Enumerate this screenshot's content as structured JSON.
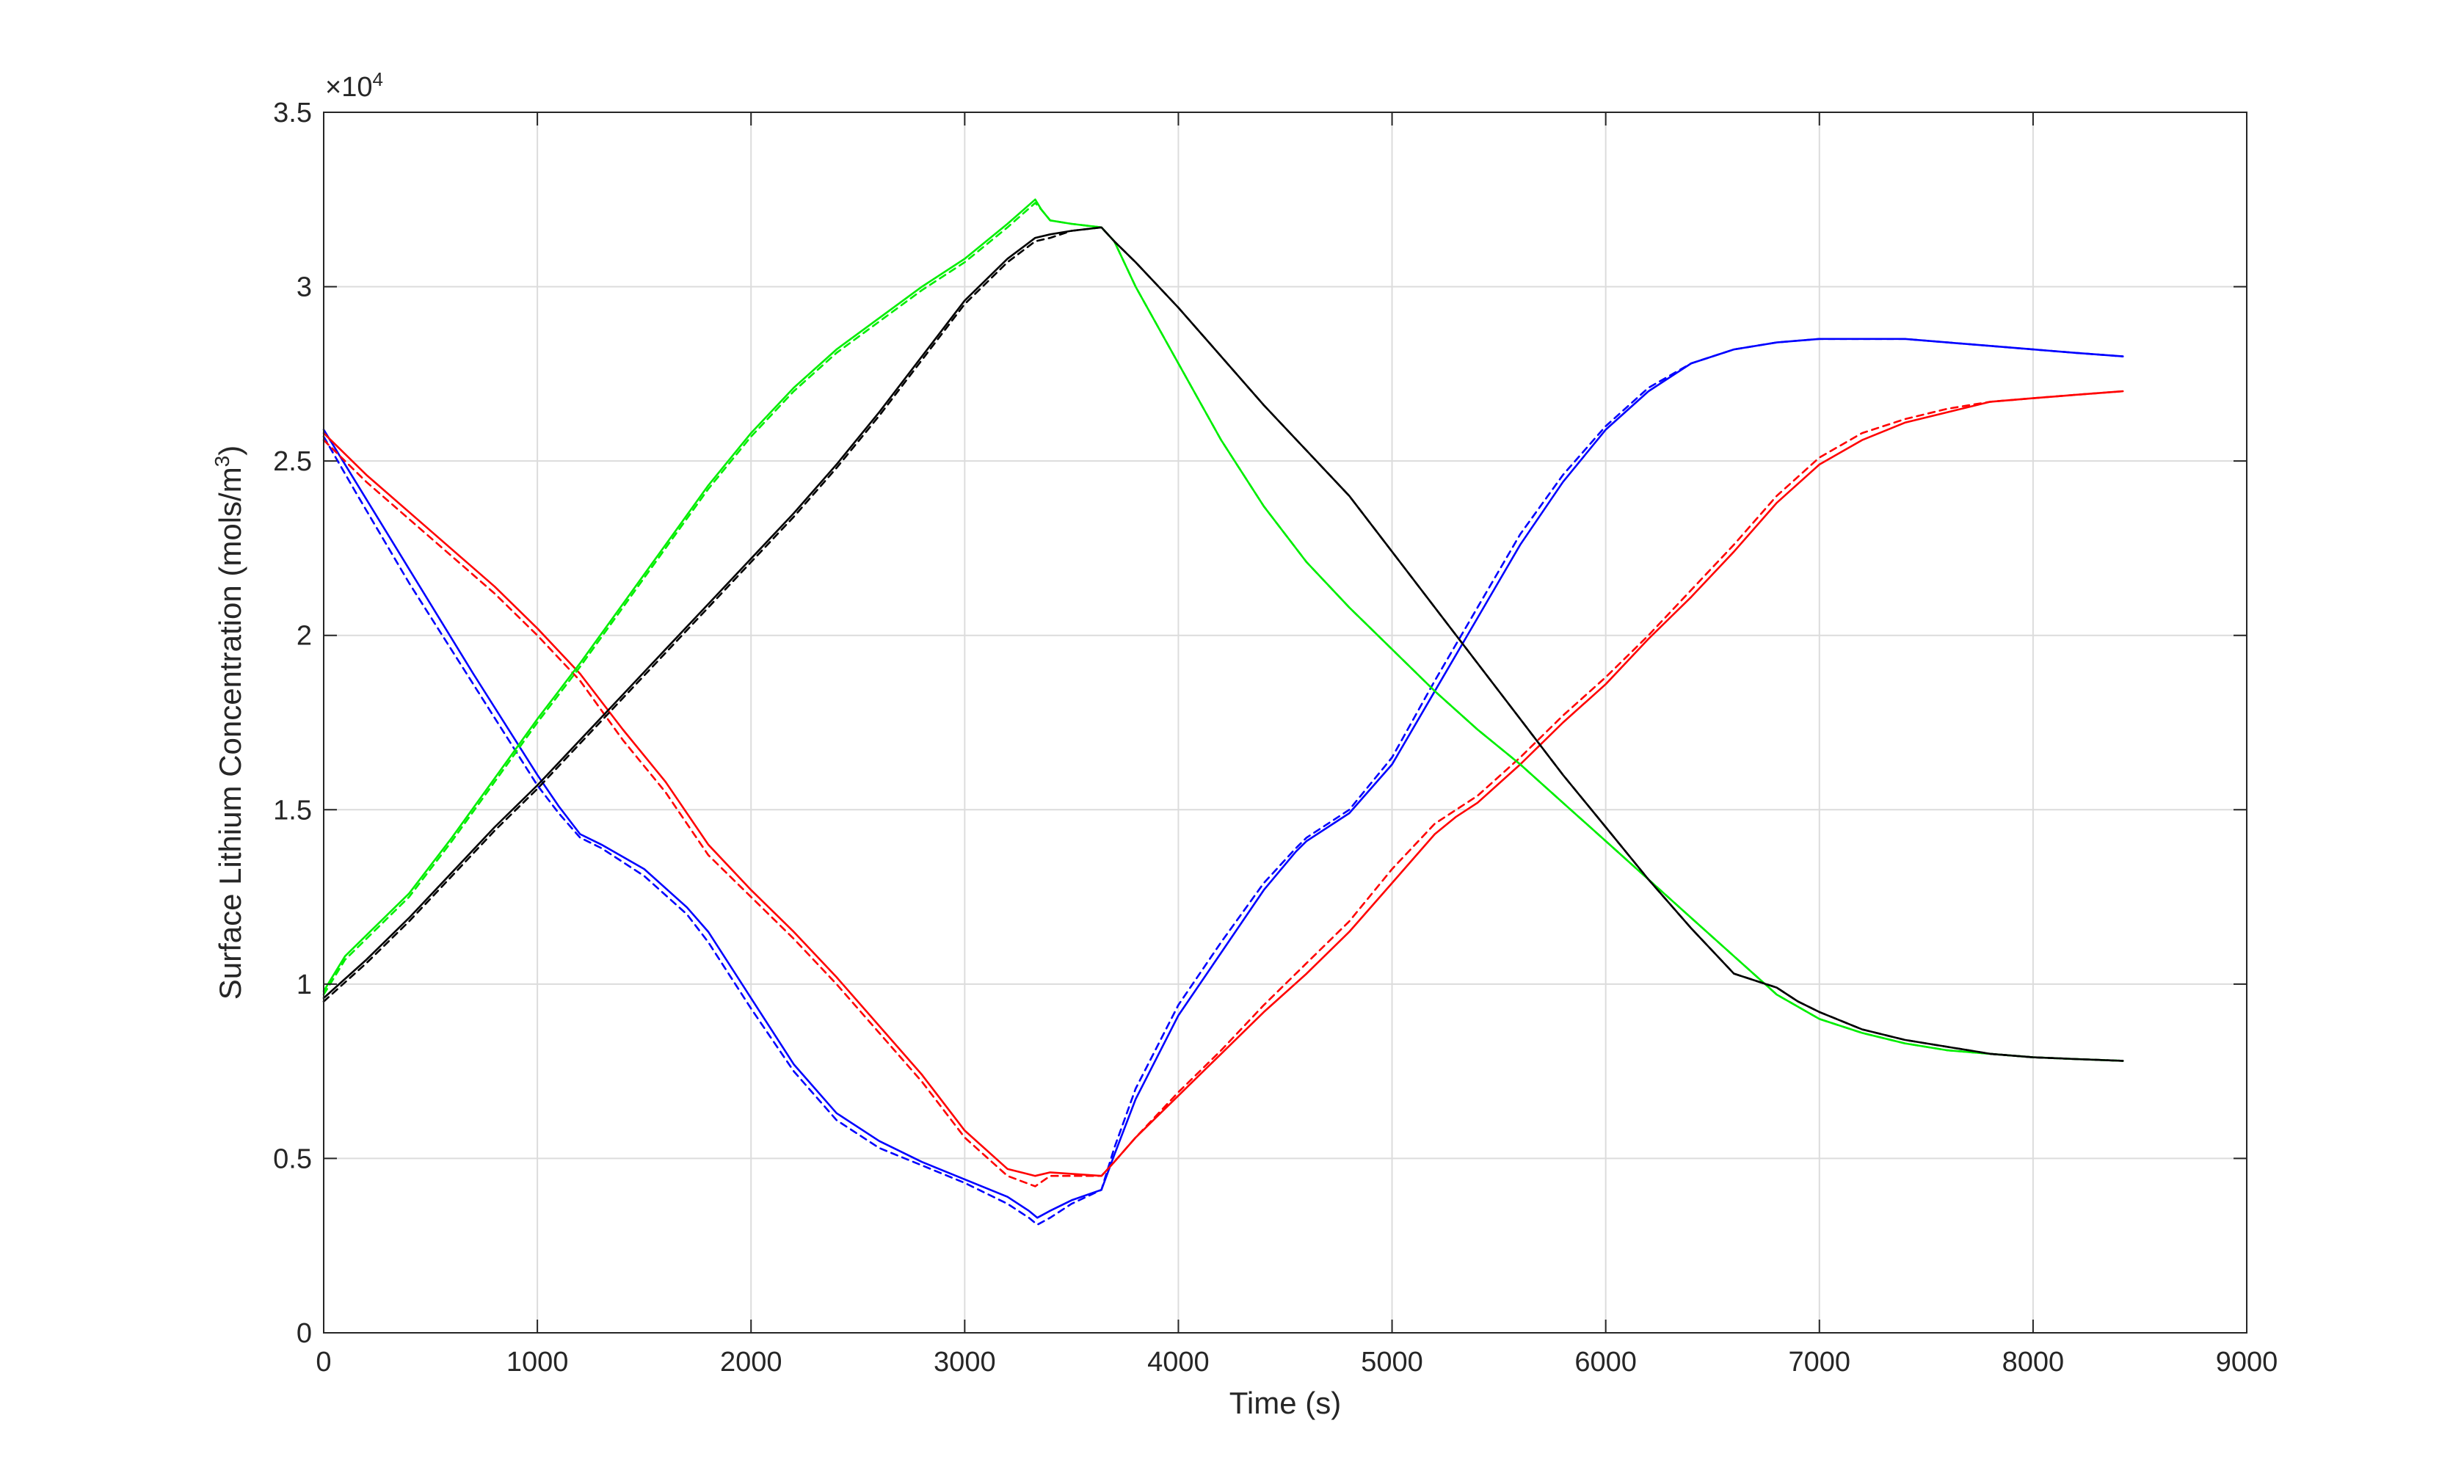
{
  "chart_data": {
    "type": "line",
    "title": "",
    "xlabel": "Time (s)",
    "ylabel": "Surface  Lithium  Concentration  (mols/m",
    "ylabel_superscript": "3",
    "ylabel_suffix": ")",
    "y_exponent_label": "×10",
    "y_exponent_power": "4",
    "xlim": [
      0,
      9000
    ],
    "ylim": [
      0,
      35000
    ],
    "x_ticks": [
      0,
      1000,
      2000,
      3000,
      4000,
      5000,
      6000,
      7000,
      8000,
      9000
    ],
    "x_tick_labels": [
      "0",
      "1000",
      "2000",
      "3000",
      "4000",
      "5000",
      "6000",
      "7000",
      "8000",
      "9000"
    ],
    "y_ticks": [
      0,
      5000,
      10000,
      15000,
      20000,
      25000,
      30000,
      35000
    ],
    "y_tick_labels": [
      "0",
      "0.5",
      "1",
      "1.5",
      "2",
      "2.5",
      "3",
      "3.5"
    ],
    "grid": true,
    "legend": "none",
    "series": [
      {
        "color": "#0000ff",
        "style": "solid",
        "x": [
          0,
          150,
          400,
          700,
          1000,
          1100,
          1200,
          1300,
          1500,
          1700,
          1800,
          2000,
          2200,
          2400,
          2600,
          2800,
          3000,
          3200,
          3300,
          3340,
          3400,
          3500,
          3640,
          3700,
          3800,
          4000,
          4200,
          4400,
          4550,
          4600,
          4800,
          5000,
          5200,
          5400,
          5600,
          5800,
          6000,
          6200,
          6400,
          6600,
          6800,
          7000,
          7200,
          7400,
          7600,
          7800,
          8000,
          8200,
          8420
        ],
        "y": [
          25900,
          24400,
          21900,
          18900,
          16000,
          15100,
          14300,
          14000,
          13300,
          12200,
          11500,
          9600,
          7700,
          6300,
          5500,
          4900,
          4400,
          3900,
          3500,
          3300,
          3500,
          3800,
          4100,
          5100,
          6700,
          9100,
          10900,
          12700,
          13800,
          14100,
          14900,
          16300,
          18400,
          20500,
          22600,
          24400,
          25900,
          27000,
          27800,
          28200,
          28400,
          28500,
          28500,
          28500,
          28400,
          28300,
          28200,
          28100,
          28000
        ]
      },
      {
        "color": "#0000ff",
        "style": "dashed",
        "x": [
          0,
          150,
          400,
          700,
          1000,
          1100,
          1200,
          1300,
          1500,
          1700,
          1800,
          2000,
          2200,
          2400,
          2600,
          2800,
          3000,
          3200,
          3300,
          3340,
          3400,
          3500,
          3640,
          3700,
          3800,
          4000,
          4200,
          4400,
          4550,
          4600,
          4800,
          5000,
          5200,
          5400,
          5600,
          5800,
          6000,
          6200,
          6400,
          6600,
          6800,
          7000,
          7200,
          7400,
          7600,
          7800,
          8000,
          8200,
          8420
        ],
        "y": [
          25700,
          24100,
          21500,
          18600,
          15700,
          14900,
          14200,
          13900,
          13100,
          12000,
          11200,
          9300,
          7500,
          6100,
          5300,
          4800,
          4300,
          3700,
          3300,
          3100,
          3300,
          3700,
          4100,
          5300,
          7000,
          9400,
          11200,
          12900,
          13900,
          14200,
          15000,
          16500,
          18700,
          20800,
          22900,
          24600,
          26000,
          27100,
          27800,
          28200,
          28400,
          28500,
          28500,
          28500,
          28400,
          28300,
          28200,
          28100,
          28000
        ]
      },
      {
        "color": "#ff0000",
        "style": "solid",
        "x": [
          0,
          200,
          500,
          800,
          1000,
          1200,
          1400,
          1600,
          1800,
          2000,
          2200,
          2400,
          2600,
          2800,
          3000,
          3200,
          3330,
          3400,
          3640,
          3700,
          3800,
          4000,
          4200,
          4400,
          4600,
          4800,
          5000,
          5200,
          5300,
          5400,
          5600,
          5800,
          6000,
          6200,
          6400,
          6600,
          6800,
          7000,
          7200,
          7400,
          7600,
          7800,
          8000,
          8200,
          8420
        ],
        "y": [
          25800,
          24600,
          23000,
          21400,
          20200,
          18900,
          17300,
          15800,
          14000,
          12700,
          11500,
          10200,
          8800,
          7400,
          5800,
          4700,
          4500,
          4600,
          4500,
          4900,
          5600,
          6800,
          8000,
          9200,
          10300,
          11500,
          12900,
          14300,
          14800,
          15200,
          16300,
          17500,
          18600,
          19900,
          21100,
          22400,
          23800,
          24900,
          25600,
          26100,
          26400,
          26700,
          26800,
          26900,
          27000
        ]
      },
      {
        "color": "#ff0000",
        "style": "dashed",
        "x": [
          0,
          200,
          500,
          800,
          1000,
          1200,
          1400,
          1600,
          1800,
          2000,
          2200,
          2400,
          2600,
          2800,
          3000,
          3200,
          3330,
          3400,
          3640,
          3700,
          3800,
          4000,
          4200,
          4400,
          4600,
          4800,
          5000,
          5200,
          5300,
          5400,
          5600,
          5800,
          6000,
          6200,
          6400,
          6600,
          6800,
          7000,
          7200,
          7400,
          7600,
          7800,
          8000,
          8200,
          8420
        ],
        "y": [
          25600,
          24400,
          22800,
          21200,
          20000,
          18700,
          17000,
          15500,
          13700,
          12500,
          11300,
          10000,
          8600,
          7200,
          5600,
          4500,
          4200,
          4500,
          4500,
          4900,
          5600,
          6900,
          8100,
          9400,
          10600,
          11800,
          13300,
          14600,
          15000,
          15400,
          16500,
          17700,
          18800,
          20000,
          21300,
          22600,
          24000,
          25100,
          25800,
          26200,
          26500,
          26700,
          26800,
          26900,
          27000
        ]
      },
      {
        "color": "#00ee00",
        "style": "solid",
        "x": [
          0,
          50,
          100,
          200,
          400,
          600,
          800,
          1000,
          1200,
          1400,
          1600,
          1800,
          2000,
          2200,
          2400,
          2600,
          2800,
          3000,
          3200,
          3330,
          3360,
          3400,
          3500,
          3640,
          3700,
          3800,
          4000,
          4200,
          4400,
          4600,
          4800,
          5000,
          5200,
          5400,
          5600,
          5800,
          6000,
          6200,
          6400,
          6600,
          6800,
          7000,
          7200,
          7400,
          7600,
          7800,
          8000,
          8200,
          8420
        ],
        "y": [
          9800,
          10300,
          10800,
          11400,
          12600,
          14200,
          15900,
          17600,
          19200,
          20900,
          22600,
          24300,
          25800,
          27100,
          28200,
          29100,
          30000,
          30800,
          31800,
          32500,
          32200,
          31900,
          31800,
          31700,
          31300,
          30000,
          27800,
          25600,
          23700,
          22100,
          20800,
          19600,
          18400,
          17300,
          16300,
          15200,
          14100,
          13000,
          11900,
          10800,
          9700,
          9000,
          8600,
          8300,
          8100,
          8000,
          7900,
          7850,
          7800
        ]
      },
      {
        "color": "#00ee00",
        "style": "dashed",
        "x": [
          0,
          50,
          100,
          200,
          400,
          600,
          800,
          1000,
          1200,
          1400,
          1600,
          1800,
          2000,
          2200,
          2400,
          2600,
          2800,
          3000,
          3200,
          3330,
          3360,
          3400,
          3500,
          3640,
          3700,
          3800,
          4000,
          4200,
          4400,
          4600,
          4800,
          5000,
          5200,
          5400,
          5600,
          5800,
          6000,
          6200,
          6400,
          6600,
          6800,
          7000,
          7200,
          7400,
          7600,
          7800,
          8000,
          8200,
          8420
        ],
        "y": [
          9700,
          10200,
          10700,
          11300,
          12500,
          14100,
          15800,
          17500,
          19100,
          20800,
          22500,
          24200,
          25700,
          27000,
          28100,
          29000,
          29900,
          30700,
          31700,
          32400,
          32200,
          31900,
          31800,
          31700,
          31300,
          30000,
          27800,
          25600,
          23700,
          22100,
          20800,
          19600,
          18400,
          17300,
          16300,
          15200,
          14100,
          13000,
          11900,
          10800,
          9700,
          9000,
          8600,
          8300,
          8100,
          8000,
          7900,
          7850,
          7800
        ]
      },
      {
        "color": "#000000",
        "style": "solid",
        "x": [
          0,
          200,
          400,
          600,
          800,
          1000,
          1200,
          1400,
          1600,
          1800,
          2000,
          2200,
          2400,
          2600,
          2800,
          3000,
          3200,
          3330,
          3400,
          3500,
          3640,
          3700,
          3800,
          4000,
          4200,
          4400,
          4600,
          4800,
          5000,
          5200,
          5400,
          5600,
          5800,
          6000,
          6200,
          6400,
          6600,
          6800,
          6900,
          7000,
          7200,
          7400,
          7600,
          7800,
          8000,
          8200,
          8420
        ],
        "y": [
          9600,
          10700,
          11900,
          13200,
          14500,
          15700,
          17000,
          18300,
          19600,
          20900,
          22200,
          23500,
          24900,
          26400,
          28000,
          29600,
          30800,
          31400,
          31500,
          31600,
          31700,
          31300,
          30700,
          29400,
          28000,
          26600,
          25300,
          24000,
          22400,
          20800,
          19200,
          17600,
          16000,
          14500,
          13000,
          11600,
          10300,
          9900,
          9500,
          9200,
          8700,
          8400,
          8200,
          8000,
          7900,
          7850,
          7800
        ]
      },
      {
        "color": "#000000",
        "style": "dashed",
        "x": [
          0,
          200,
          400,
          600,
          800,
          1000,
          1200,
          1400,
          1600,
          1800,
          2000,
          2200,
          2400,
          2600,
          2800,
          3000,
          3200,
          3330,
          3400,
          3500,
          3640,
          3700,
          3800,
          4000,
          4200,
          4400,
          4600,
          4800,
          5000,
          5200,
          5400,
          5600,
          5800,
          6000,
          6200,
          6400,
          6600,
          6800,
          6900,
          7000,
          7200,
          7400,
          7600,
          7800,
          8000,
          8200,
          8420
        ],
        "y": [
          9500,
          10600,
          11800,
          13100,
          14400,
          15600,
          16900,
          18200,
          19500,
          20800,
          22100,
          23400,
          24800,
          26300,
          27900,
          29500,
          30700,
          31300,
          31400,
          31600,
          31700,
          31300,
          30700,
          29400,
          28000,
          26600,
          25300,
          24000,
          22400,
          20800,
          19200,
          17600,
          16000,
          14500,
          13000,
          11600,
          10300,
          9900,
          9500,
          9200,
          8700,
          8400,
          8200,
          8000,
          7900,
          7850,
          7800
        ]
      }
    ]
  }
}
